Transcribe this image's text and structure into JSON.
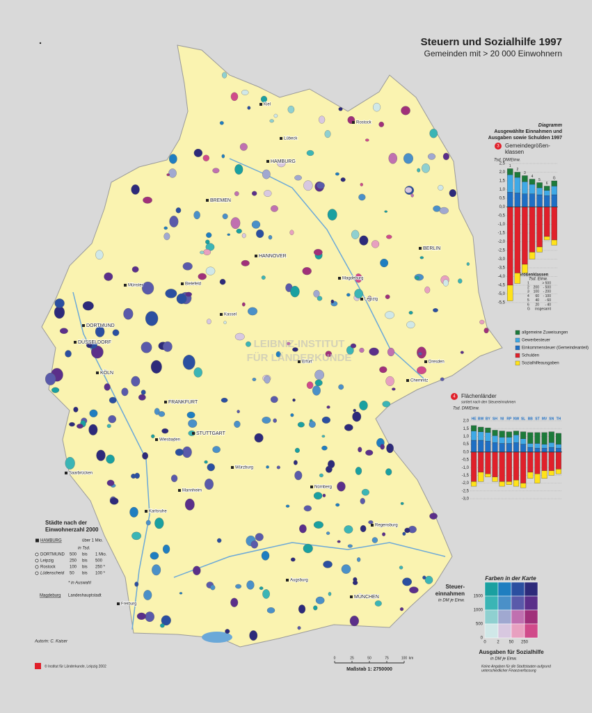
{
  "header": {
    "title": "Steuern und Sozialhilfe 1997",
    "subtitle": "Gemeinden mit > 20 000 Einwohnern"
  },
  "diagram": {
    "label": "Diagramm",
    "title1": "Ausgewählte Einnahmen und",
    "title2": "Ausgaben sowie Schulden 1997"
  },
  "chart3": {
    "type": "bar",
    "number": "3",
    "title1": "Gemeindegrößen-",
    "title2": "klassen",
    "y_label": "Tsd. DM/Einw.",
    "categories": [
      "1",
      "2",
      "3",
      "4",
      "5",
      "6",
      "G"
    ],
    "ylim": [
      -5.5,
      2.5
    ],
    "yticks": [
      {
        "value": 2.5,
        "label": "2,5"
      },
      {
        "value": 2.0,
        "label": "2,0"
      },
      {
        "value": 1.5,
        "label": "1,5"
      },
      {
        "value": 1.0,
        "label": "1,0"
      },
      {
        "value": 0.5,
        "label": "0,5"
      },
      {
        "value": 0,
        "label": "0,0"
      },
      {
        "value": -0.5,
        "label": "-0,5"
      },
      {
        "value": -1.0,
        "label": "-1,0"
      },
      {
        "value": -1.5,
        "label": "-1,5"
      },
      {
        "value": -2.0,
        "label": "-2,0"
      },
      {
        "value": -2.5,
        "label": "-2,5"
      },
      {
        "value": -3.0,
        "label": "-3,0"
      },
      {
        "value": -3.5,
        "label": "-3,5"
      },
      {
        "value": -4.0,
        "label": "-4,0"
      },
      {
        "value": -4.5,
        "label": "-4,5"
      },
      {
        "value": -5.0,
        "label": "-5,0"
      },
      {
        "value": -5.5,
        "label": "-5,5"
      }
    ],
    "series": [
      {
        "name": "Einkommensteuer (Gemeindeanteil)",
        "color": "#1e6fc4",
        "values": [
          0.85,
          0.8,
          0.75,
          0.75,
          0.7,
          0.65,
          0.7
        ]
      },
      {
        "name": "Gewerbesteuer",
        "color": "#3fa9e6",
        "values": [
          1.0,
          0.9,
          0.7,
          0.55,
          0.4,
          0.3,
          0.5
        ]
      },
      {
        "name": "allgemeine Zuweisungen",
        "color": "#1c7a3a",
        "values": [
          0.35,
          0.3,
          0.35,
          0.3,
          0.3,
          0.25,
          0.3
        ]
      },
      {
        "name": "Schulden",
        "color": "#e0202a",
        "values": [
          -4.5,
          -3.8,
          -3.3,
          -2.6,
          -2.3,
          -1.7,
          -1.9
        ]
      },
      {
        "name": "Sozialhilfeausgaben",
        "color": "#ffe21a",
        "values": [
          -0.9,
          -0.6,
          -0.5,
          -0.4,
          -0.3,
          -0.2,
          -0.3
        ]
      }
    ],
    "size_title1": "Größenklassen",
    "size_title2": "Tsd. Einw.",
    "size_rows": [
      [
        "1",
        "",
        "> 500"
      ],
      [
        "2",
        "200",
        "- 500"
      ],
      [
        "3",
        "100",
        "- 200"
      ],
      [
        "4",
        "60",
        "- 100"
      ],
      [
        "5",
        "40",
        "- 60"
      ],
      [
        "6",
        "20",
        "- 40"
      ],
      [
        "G",
        "",
        "insgesamt"
      ]
    ]
  },
  "chart4": {
    "type": "bar",
    "number": "4",
    "title": "Flächenländer",
    "subtitle": "sortiert nach den Steuereinnahmen",
    "y_label": "Tsd. DM/Einw.",
    "categories": [
      "HE",
      "BW",
      "BY",
      "SH",
      "NI",
      "RP",
      "NW",
      "SL",
      "BB",
      "ST",
      "MV",
      "SN",
      "TH"
    ],
    "ylim": [
      -3.0,
      2.0
    ],
    "yticks": [
      {
        "value": 2.0,
        "label": "2,0"
      },
      {
        "value": 1.5,
        "label": "1,5"
      },
      {
        "value": 1.0,
        "label": "1,0"
      },
      {
        "value": 0.5,
        "label": "0,5"
      },
      {
        "value": 0,
        "label": "0,0"
      },
      {
        "value": -0.5,
        "label": "-0,5"
      },
      {
        "value": -1.0,
        "label": "-1,0"
      },
      {
        "value": -1.5,
        "label": "-1,5"
      },
      {
        "value": -2.0,
        "label": "-2,0"
      },
      {
        "value": -2.5,
        "label": "-2,5"
      },
      {
        "value": -3.0,
        "label": "-3,0"
      }
    ],
    "series": [
      {
        "color": "#1e6fc4",
        "values": [
          0.75,
          0.75,
          0.7,
          0.6,
          0.55,
          0.55,
          0.6,
          0.5,
          0.3,
          0.25,
          0.25,
          0.3,
          0.25
        ]
      },
      {
        "color": "#3fa9e6",
        "values": [
          0.6,
          0.55,
          0.55,
          0.45,
          0.4,
          0.4,
          0.5,
          0.35,
          0.25,
          0.3,
          0.25,
          0.3,
          0.25
        ]
      },
      {
        "color": "#1c7a3a",
        "values": [
          0.35,
          0.3,
          0.3,
          0.35,
          0.4,
          0.35,
          0.25,
          0.45,
          0.7,
          0.7,
          0.75,
          0.7,
          0.7
        ]
      },
      {
        "color": "#e0202a",
        "values": [
          -1.9,
          -1.3,
          -1.4,
          -1.6,
          -1.9,
          -1.9,
          -1.8,
          -2.0,
          -1.3,
          -1.4,
          -1.2,
          -1.2,
          -1.1
        ]
      },
      {
        "color": "#ffe21a",
        "values": [
          -0.3,
          -0.6,
          -0.2,
          -0.3,
          -0.3,
          -0.2,
          -0.4,
          -0.3,
          -0.4,
          -0.6,
          -0.5,
          -0.3,
          -0.3
        ]
      }
    ]
  },
  "city_legend": {
    "title1": "Städte nach der",
    "title2": "Einwohnerzahl 2000",
    "unit": "in Tsd.",
    "note": "* in Auswahl",
    "rows": [
      [
        "HAMBURG",
        "über 1 Mio."
      ],
      [
        "DORTMUND",
        "500",
        "bis",
        "1 Mio."
      ],
      [
        "Leipzig",
        "250",
        "bis",
        "500"
      ],
      [
        "Rostock",
        "100",
        "bis",
        "250 *"
      ],
      [
        "Lüdenscheid",
        "50",
        "bis",
        "100 *"
      ]
    ],
    "capital": [
      "Magdeburg",
      "Landeshauptstadt"
    ]
  },
  "matrix": {
    "title": "Farben in der Karte",
    "y_title1": "Steuer-",
    "y_title2": "einnahmen",
    "y_unit": "in DM je Einw.",
    "x_title": "Ausgaben für Sozialhilfe",
    "x_unit": "in DM je Einw.",
    "yticks": [
      0,
      500,
      1000,
      1500
    ],
    "xticks": [
      0,
      2,
      50,
      250
    ],
    "colors": [
      [
        "#1aa0a0",
        "#1f7ec0",
        "#2b4fa0",
        "#2d2a7a"
      ],
      [
        "#3bb5b5",
        "#4a90c8",
        "#5a5aaa",
        "#5b2f8a"
      ],
      [
        "#8fd0d0",
        "#a0a8d0",
        "#c070b0",
        "#a0307a"
      ],
      [
        "#d0e8e8",
        "#d8c8e0",
        "#e8a0c0",
        "#d04a8a"
      ]
    ],
    "note1": "Keine Angaben für die Stadtstaaten aufgrund",
    "note2": "unterschiedlicher Finanzverfassung"
  },
  "scale": {
    "ticks": [
      0,
      25,
      50,
      75,
      100
    ],
    "unit": "km",
    "label": "Maßstab  1: 2750000"
  },
  "credits": {
    "author": "Autorin:  C. Kaiser",
    "copyright": "© Institut für Länderkunde, Leipzig 2002",
    "watermark1": "LEIBNIZ-INSTITUT",
    "watermark2": "FÜR LÄNDERKUNDE"
  },
  "cities": [
    "HAMBURG",
    "BREMEN",
    "HANNOVER",
    "BERLIN",
    "MÜNCHEN",
    "STUTTGART",
    "DORTMUND",
    "KÖLN",
    "DÜSSELDORF",
    "FRANKFURT",
    "Leipzig",
    "Dresden",
    "Nürnberg",
    "Rostock",
    "Kiel",
    "Magdeburg",
    "Chemnitz",
    "Augsburg",
    "Bielefeld",
    "Wiesbaden",
    "Mannheim",
    "Karlsruhe",
    "Freiburg",
    "Saarbrücken",
    "Erfurt",
    "Lübeck",
    "Münster",
    "Kassel",
    "Würzburg",
    "Regensburg"
  ]
}
